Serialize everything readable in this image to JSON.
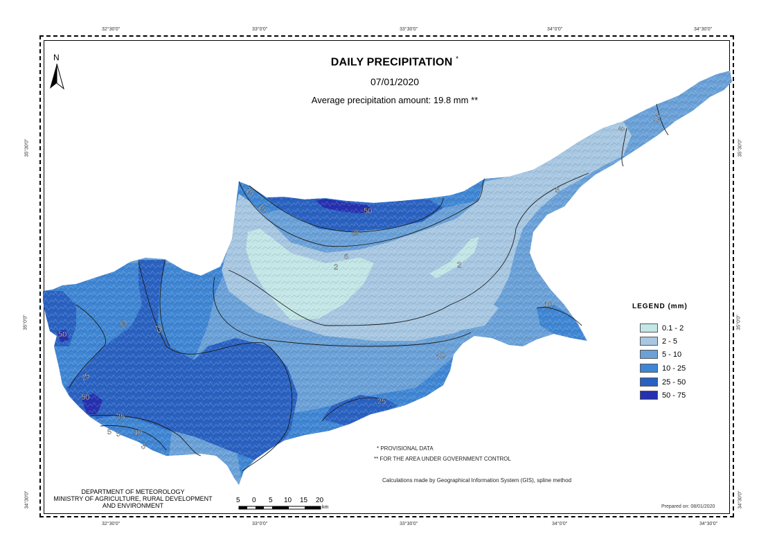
{
  "map": {
    "title": "DAILY PRECIPITATION",
    "title_mark": "*",
    "date": "07/01/2020",
    "average": "Average precipitation amount: 19.8 mm **",
    "north": "N"
  },
  "coords": {
    "top": [
      "32°30'0\"",
      "33°0'0\"",
      "33°30'0\"",
      "34°0'0\"",
      "34°30'0\""
    ],
    "bottom": [
      "32°30'0\"",
      "33°0'0\"",
      "33°30'0\"",
      "34°0'0\"",
      "34°30'0\""
    ],
    "left": [
      "35°30'0\"",
      "35°0'0\"",
      "34°30'0\""
    ],
    "right": [
      "35°30'0\"",
      "35°0'0\"",
      "34°30'0\""
    ]
  },
  "legend": {
    "title": "LEGEND (mm)",
    "items": [
      {
        "label": "0.1 - 2",
        "color": "#c3e6e6"
      },
      {
        "label": "2 - 5",
        "color": "#a7c7e2"
      },
      {
        "label": "5 - 10",
        "color": "#6aa1d8"
      },
      {
        "label": "10 - 25",
        "color": "#3f86d4"
      },
      {
        "label": "25 - 50",
        "color": "#2a62c2"
      },
      {
        "label": "50 - 75",
        "color": "#2630b0"
      }
    ]
  },
  "contour_labels": [
    "10",
    "10",
    "50",
    "25",
    "6",
    "2",
    "2",
    "5",
    "5",
    "10",
    "10",
    "10",
    "25",
    "25",
    "50",
    "25",
    "50",
    "25",
    "25",
    "5",
    "5",
    "10",
    "5"
  ],
  "notes": {
    "provisional": "* PROVISIONAL DATA",
    "government": "** FOR THE AREA UNDER GOVERNMENT CONTROL",
    "method": "Calculations made by Geographical Information System (GIS), spline method",
    "prepared": "Prepared on: 08/01/2020"
  },
  "department": {
    "line1": "DEPARTMENT OF METEOROLOGY",
    "line2": "MINISTRY OF AGRICULTURE, RURAL DEVELOPMENT",
    "line3": "AND ENVIRONMENT"
  },
  "scale": {
    "ticks": [
      "5",
      "0",
      "5",
      "10",
      "15",
      "20"
    ],
    "unit": "km"
  }
}
